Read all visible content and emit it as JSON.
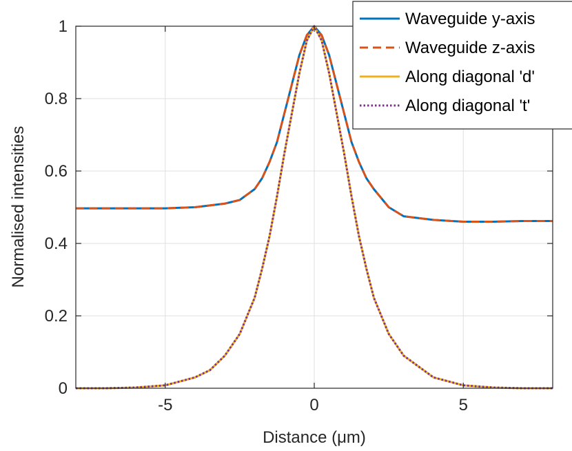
{
  "chart_data": {
    "type": "line",
    "title": "",
    "xlabel": "Distance (μm)",
    "ylabel": "Normalised intensities",
    "xlim": [
      -8,
      8
    ],
    "ylim": [
      0,
      1
    ],
    "xticks": [
      -5,
      0,
      5
    ],
    "yticks": [
      0,
      0.2,
      0.4,
      0.6,
      0.8,
      1
    ],
    "xtick_labels": [
      "-5",
      "0",
      "5"
    ],
    "ytick_labels": [
      "0",
      "0.2",
      "0.4",
      "0.6",
      "0.8",
      "1"
    ],
    "grid": true,
    "legend_position": "top-right",
    "series": [
      {
        "name": "Waveguide y-axis",
        "color": "#0072BD",
        "style": "solid",
        "x": [
          -8,
          -7,
          -6,
          -5,
          -4,
          -3.5,
          -3,
          -2.5,
          -2,
          -1.75,
          -1.5,
          -1.25,
          -1,
          -0.75,
          -0.5,
          -0.25,
          0,
          0.25,
          0.5,
          0.75,
          1,
          1.25,
          1.5,
          1.75,
          2,
          2.5,
          3,
          4,
          5,
          6,
          7,
          8
        ],
        "y": [
          0.497,
          0.497,
          0.497,
          0.497,
          0.5,
          0.505,
          0.51,
          0.52,
          0.55,
          0.58,
          0.625,
          0.68,
          0.76,
          0.84,
          0.92,
          0.975,
          1.0,
          0.975,
          0.92,
          0.84,
          0.76,
          0.68,
          0.625,
          0.58,
          0.55,
          0.5,
          0.475,
          0.465,
          0.46,
          0.46,
          0.462,
          0.462
        ]
      },
      {
        "name": "Waveguide z-axis",
        "color": "#D95319",
        "style": "dashed",
        "x": [
          -8,
          -7,
          -6,
          -5,
          -4,
          -3.5,
          -3,
          -2.5,
          -2,
          -1.75,
          -1.5,
          -1.25,
          -1,
          -0.75,
          -0.5,
          -0.25,
          0,
          0.25,
          0.5,
          0.75,
          1,
          1.25,
          1.5,
          1.75,
          2,
          2.5,
          3,
          4,
          5,
          6,
          7,
          8
        ],
        "y": [
          0.497,
          0.497,
          0.497,
          0.497,
          0.5,
          0.505,
          0.51,
          0.52,
          0.55,
          0.58,
          0.625,
          0.68,
          0.76,
          0.84,
          0.92,
          0.975,
          1.0,
          0.975,
          0.92,
          0.84,
          0.76,
          0.68,
          0.625,
          0.58,
          0.55,
          0.5,
          0.475,
          0.465,
          0.46,
          0.46,
          0.462,
          0.462
        ]
      },
      {
        "name": "Along diagonal 'd'",
        "color": "#EDB120",
        "style": "solid",
        "x": [
          -8,
          -7,
          -6,
          -5,
          -4,
          -3.5,
          -3,
          -2.5,
          -2,
          -1.75,
          -1.5,
          -1.25,
          -1,
          -0.75,
          -0.5,
          -0.25,
          0,
          0.25,
          0.5,
          0.75,
          1,
          1.25,
          1.5,
          1.75,
          2,
          2.5,
          3,
          4,
          5,
          6,
          7,
          8
        ],
        "y": [
          0,
          0,
          0.002,
          0.008,
          0.03,
          0.05,
          0.09,
          0.15,
          0.25,
          0.33,
          0.42,
          0.53,
          0.65,
          0.76,
          0.87,
          0.96,
          1.0,
          0.96,
          0.87,
          0.76,
          0.65,
          0.53,
          0.42,
          0.33,
          0.25,
          0.15,
          0.09,
          0.03,
          0.008,
          0.002,
          0,
          0
        ]
      },
      {
        "name": "Along diagonal 't'",
        "color": "#7E2F8E",
        "style": "dotted",
        "x": [
          -8,
          -7,
          -6,
          -5,
          -4,
          -3.5,
          -3,
          -2.5,
          -2,
          -1.75,
          -1.5,
          -1.25,
          -1,
          -0.75,
          -0.5,
          -0.25,
          0,
          0.25,
          0.5,
          0.75,
          1,
          1.25,
          1.5,
          1.75,
          2,
          2.5,
          3,
          4,
          5,
          6,
          7,
          8
        ],
        "y": [
          0,
          0,
          0.002,
          0.008,
          0.03,
          0.05,
          0.09,
          0.15,
          0.25,
          0.33,
          0.42,
          0.53,
          0.65,
          0.76,
          0.87,
          0.96,
          1.0,
          0.96,
          0.87,
          0.76,
          0.65,
          0.53,
          0.42,
          0.33,
          0.25,
          0.15,
          0.09,
          0.03,
          0.008,
          0.002,
          0,
          0
        ]
      }
    ]
  }
}
